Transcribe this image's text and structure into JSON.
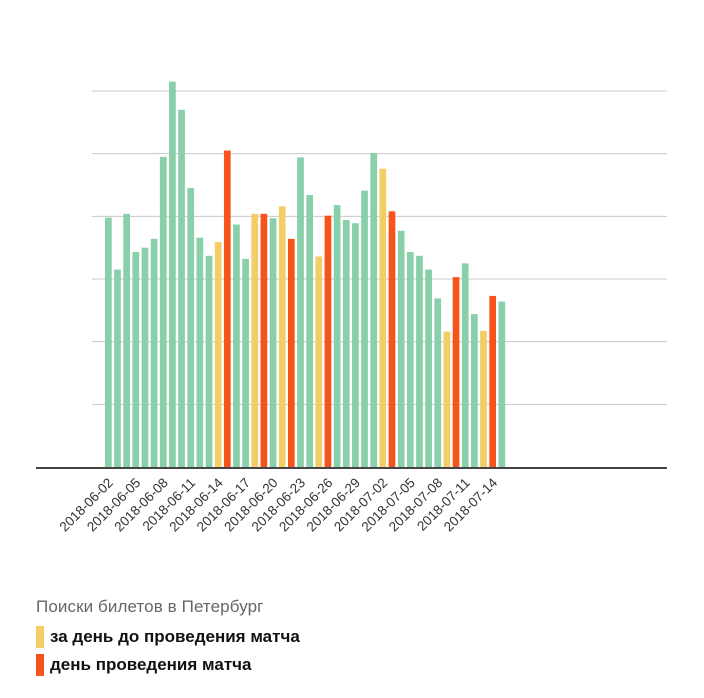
{
  "chart_data": {
    "type": "bar",
    "title": "Поиски билетов в Петербург",
    "xlabel": "",
    "ylabel": "",
    "ylim": [
      0,
      6.2
    ],
    "grid": true,
    "legend_position": "bottom-left",
    "colors": {
      "regular": "#88cfaa",
      "day_before": "#f3cd65",
      "match_day": "#f7541b",
      "grid": "#c8c8c8",
      "axis": "#444444"
    },
    "legend": [
      {
        "key": "day_before",
        "label": "за день до проведения матча"
      },
      {
        "key": "match_day",
        "label": "день проведения матча"
      }
    ],
    "tick_labels": [
      "2018-06-02",
      "2018-06-05",
      "2018-06-08",
      "2018-06-11",
      "2018-06-14",
      "2018-06-17",
      "2018-06-20",
      "2018-06-23",
      "2018-06-26",
      "2018-06-29",
      "2018-07-02",
      "2018-07-05",
      "2018-07-08",
      "2018-07-11",
      "2018-07-14"
    ],
    "categories": [
      "2018-06-02",
      "2018-06-03",
      "2018-06-04",
      "2018-06-05",
      "2018-06-06",
      "2018-06-07",
      "2018-06-08",
      "2018-06-09",
      "2018-06-10",
      "2018-06-11",
      "2018-06-12",
      "2018-06-13",
      "2018-06-14",
      "2018-06-15",
      "2018-06-16",
      "2018-06-17",
      "2018-06-18",
      "2018-06-19",
      "2018-06-20",
      "2018-06-21",
      "2018-06-22",
      "2018-06-23",
      "2018-06-24",
      "2018-06-25",
      "2018-06-26",
      "2018-06-27",
      "2018-06-28",
      "2018-06-29",
      "2018-06-30",
      "2018-07-01",
      "2018-07-02",
      "2018-07-03",
      "2018-07-04",
      "2018-07-05",
      "2018-07-06",
      "2018-07-07",
      "2018-07-08",
      "2018-07-09",
      "2018-07-10",
      "2018-07-11",
      "2018-07-12",
      "2018-07-13",
      "2018-07-14",
      "2018-07-15"
    ],
    "values": [
      3.98,
      3.15,
      4.04,
      3.43,
      3.5,
      3.64,
      4.95,
      6.15,
      5.7,
      4.45,
      3.66,
      3.37,
      3.59,
      5.05,
      3.87,
      3.32,
      4.04,
      4.04,
      3.97,
      4.16,
      3.64,
      4.94,
      4.34,
      3.36,
      4.01,
      4.18,
      3.94,
      3.89,
      4.41,
      5.01,
      4.76,
      4.08,
      3.77,
      3.43,
      3.37,
      3.15,
      2.69,
      2.16,
      3.03,
      3.25,
      2.44,
      2.17,
      2.73,
      2.64
    ],
    "bar_types": [
      "regular",
      "regular",
      "regular",
      "regular",
      "regular",
      "regular",
      "regular",
      "regular",
      "regular",
      "regular",
      "regular",
      "regular",
      "day_before",
      "match_day",
      "regular",
      "regular",
      "day_before",
      "match_day",
      "regular",
      "day_before",
      "match_day",
      "regular",
      "regular",
      "day_before",
      "match_day",
      "regular",
      "regular",
      "regular",
      "regular",
      "regular",
      "day_before",
      "match_day",
      "regular",
      "regular",
      "regular",
      "regular",
      "regular",
      "day_before",
      "match_day",
      "regular",
      "regular",
      "day_before",
      "match_day",
      "regular"
    ]
  }
}
